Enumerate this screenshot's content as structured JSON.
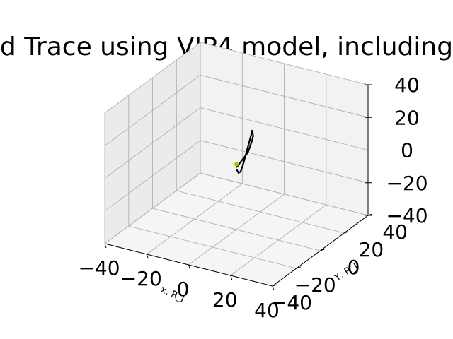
{
  "chart_data": {
    "type": "line",
    "projection": "3d",
    "title": "d Trace using VIP4 model, including",
    "xlabel": "x, R_J",
    "ylabel": "Y, R_J",
    "zlabel": "",
    "xlim": [
      -40,
      40
    ],
    "ylim": [
      -40,
      40
    ],
    "zlim": [
      -40,
      40
    ],
    "x_ticks": [
      -40,
      -20,
      0,
      20,
      40
    ],
    "y_ticks": [
      -40,
      -20,
      0,
      20,
      40
    ],
    "z_ticks": [
      -40,
      -20,
      0,
      20,
      40
    ],
    "x_tick_labels": [
      "−40",
      "−20",
      "0",
      "20",
      "40"
    ],
    "y_tick_labels": [
      "−40",
      "−20",
      "0",
      "20",
      "40"
    ],
    "z_tick_labels": [
      "−40",
      "−20",
      "0",
      "20",
      "40"
    ],
    "grid": true,
    "colors": {
      "trace": "#000000",
      "marker": "#bfbf00",
      "pane_back": "#f2f2f2",
      "pane_side": "#ebebeb",
      "pane_floor": "#f5f5f5",
      "grid": "#b0b0b0"
    },
    "series": [
      {
        "type": "line",
        "points": [
          [
            0,
            0,
            -3
          ],
          [
            1,
            0,
            -5
          ],
          [
            2,
            0,
            -4
          ],
          [
            3,
            0,
            0
          ],
          [
            4,
            0,
            5
          ],
          [
            5,
            0,
            10
          ],
          [
            6,
            0,
            15
          ],
          [
            7,
            0,
            20
          ],
          [
            7.5,
            0,
            23
          ],
          [
            8,
            0,
            20
          ],
          [
            7.5,
            0,
            17
          ],
          [
            6.5,
            0,
            13
          ],
          [
            5.5,
            0,
            9
          ],
          [
            4.5,
            0,
            7
          ],
          [
            3.5,
            0,
            5
          ],
          [
            2.5,
            0,
            3
          ],
          [
            2,
            0,
            2
          ],
          [
            1,
            0,
            0
          ],
          [
            0,
            0,
            -2
          ]
        ]
      },
      {
        "type": "scatter",
        "points": [
          [
            0,
            0,
            0
          ]
        ]
      }
    ]
  }
}
